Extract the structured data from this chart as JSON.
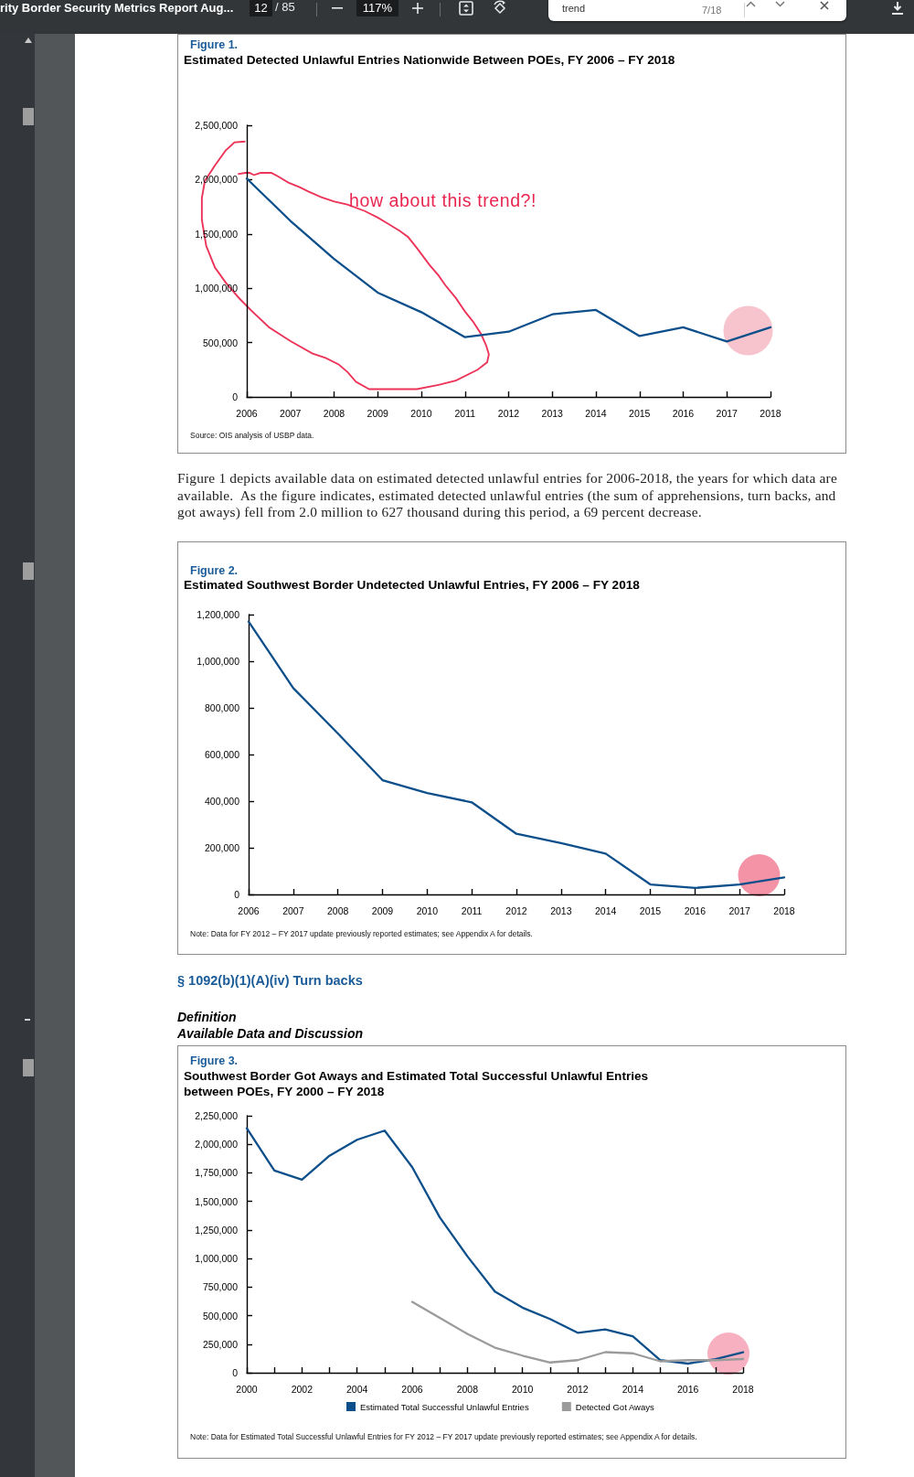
{
  "chart_data": [
    {
      "type": "other",
      "title": "rity Border Security Metrics Report Aug...",
      "annotations": [
        "12",
        "/ 85",
        "117%",
        "trend",
        "7/18"
      ]
    },
    {
      "type": "line",
      "title": "Figure 1.",
      "subtitle": "Estimated Detected Unlawful Entries Nationwide Between POEs, FY 2006 – FY 2018",
      "categories": [
        "2006",
        "2007",
        "2008",
        "2009",
        "2010",
        "2011",
        "2012",
        "2013",
        "2014",
        "2015",
        "2016",
        "2017",
        "2018"
      ],
      "series": [
        {
          "color": "#0c4f8a",
          "values": [
            2010000,
            1620000,
            1270000,
            960000,
            780000,
            550000,
            600000,
            760000,
            800000,
            560000,
            640000,
            510000,
            640000
          ]
        }
      ],
      "ylim": [
        0,
        2500000
      ],
      "yticks": [
        {
          "value": 0,
          "label": "0"
        },
        {
          "value": 500000,
          "label": "500,000"
        },
        {
          "value": 1000000,
          "label": "1,000,000"
        },
        {
          "value": 1500000,
          "label": "1,500,000"
        },
        {
          "value": 2000000,
          "label": "2,000,000"
        },
        {
          "value": 2500000,
          "label": "2,500,000"
        }
      ],
      "marker": "none",
      "annotations": [
        "how about this trend?!",
        "Source:  OIS analysis of USBP data.",
        "Figure 1 depicts available data on estimated detected unlawful entries for 2006-2018, the years for which data are available.  As the figure indicates, estimated detected unlawful entries (the sum of apprehensions, turn backs, and got aways) fell from 2.0 million to 627 thousand during this period, a 69 percent decrease."
      ]
    },
    {
      "type": "line",
      "title": "Figure 2.",
      "subtitle": "Estimated Southwest Border Undetected Unlawful Entries, FY 2006 – FY 2018",
      "categories": [
        "2006",
        "2007",
        "2008",
        "2009",
        "2010",
        "2011",
        "2012",
        "2013",
        "2014",
        "2015",
        "2016",
        "2017",
        "2018"
      ],
      "series": [
        {
          "color": "#0c4f8a",
          "values": [
            1170000,
            885000,
            690000,
            490000,
            435000,
            395000,
            260000,
            220000,
            175000,
            43000,
            28000,
            43000,
            73000
          ]
        }
      ],
      "ylim": [
        0,
        1200000
      ],
      "yticks": [
        {
          "value": 0,
          "label": "0"
        },
        {
          "value": 200000,
          "label": "200,000"
        },
        {
          "value": 400000,
          "label": "400,000"
        },
        {
          "value": 600000,
          "label": "600,000"
        },
        {
          "value": 800000,
          "label": "800,000"
        },
        {
          "value": 1000000,
          "label": "1,000,000"
        },
        {
          "value": 1200000,
          "label": "1,200,000"
        }
      ],
      "marker": "none",
      "annotations": [
        "Note: Data for FY 2012 – FY 2017 update previously reported estimates; see Appendix A for details."
      ]
    },
    {
      "type": "line",
      "title": "Figure 3.",
      "subtitle": "Southwest Border Got Aways and Estimated Total Successful Unlawful Entries between POEs, FY 2000 – FY 2018",
      "categories": [
        "2000",
        null,
        "2002",
        null,
        "2004",
        null,
        "2006",
        null,
        "2008",
        null,
        "2010",
        null,
        "2012",
        null,
        "2014",
        null,
        "2016",
        null,
        "2018"
      ],
      "series": [
        {
          "name": "Estimated Total Successful Unlawful Entries",
          "color": "#0c4f8a",
          "values": [
            2140000,
            1770000,
            1690000,
            1900000,
            2040000,
            2120000,
            1800000,
            1360000,
            1020000,
            710000,
            570000,
            470000,
            350000,
            380000,
            320000,
            110000,
            80000,
            120000,
            180000
          ]
        },
        {
          "name": "Detected Got Aways",
          "color": "#9b9b9b",
          "values": [
            null,
            null,
            null,
            null,
            null,
            null,
            620000,
            480000,
            340000,
            220000,
            150000,
            90000,
            110000,
            180000,
            170000,
            100000,
            110000,
            110000,
            120000
          ]
        }
      ],
      "ylim": [
        0,
        2250000
      ],
      "yticks": [
        {
          "value": 0,
          "label": "0"
        },
        {
          "value": 250000,
          "label": "250,000"
        },
        {
          "value": 500000,
          "label": "500,000"
        },
        {
          "value": 750000,
          "label": "750,000"
        },
        {
          "value": 1000000,
          "label": "1,000,000"
        },
        {
          "value": 1250000,
          "label": "1,250,000"
        },
        {
          "value": 1500000,
          "label": "1,500,000"
        },
        {
          "value": 1750000,
          "label": "1,750,000"
        },
        {
          "value": 2000000,
          "label": "2,000,000"
        },
        {
          "value": 2250000,
          "label": "2,250,000"
        }
      ],
      "marker": "none",
      "legend": "bottom",
      "annotations": [
        "§ 1092(b)(1)(A)(iv) Turn backs",
        "Definition",
        "Available Data and Discussion",
        "Note: Data for Estimated Total Successful Unlawful Entries for FY 2012 – FY 2017 update previously reported estimates; see Appendix A for details."
      ]
    }
  ]
}
